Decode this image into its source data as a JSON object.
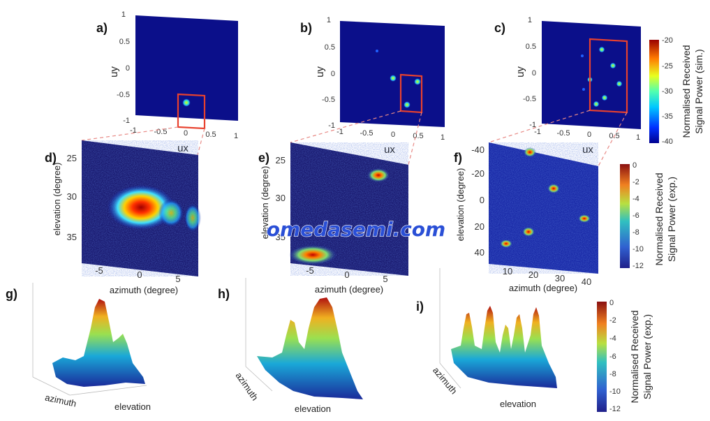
{
  "watermark": "omedasemi.com",
  "panels": {
    "a": {
      "label": "a)"
    },
    "b": {
      "label": "b)"
    },
    "c": {
      "label": "c)"
    },
    "d": {
      "label": "d)"
    },
    "e": {
      "label": "e)"
    },
    "f": {
      "label": "f)"
    },
    "g": {
      "label": "g)"
    },
    "h": {
      "label": "h)"
    },
    "i": {
      "label": "i)"
    }
  },
  "top_axes": {
    "xlabel": "ux",
    "ylabel": "uy",
    "xticks": [
      "-1",
      "-0.5",
      "0",
      "0.5",
      "1"
    ],
    "yticks": [
      "1",
      "0.5",
      "0",
      "-0.5",
      "-1"
    ]
  },
  "axes_d": {
    "xlabel": "azimuth (degree)",
    "ylabel": "elevation (degree)",
    "xticks": [
      "-5",
      "0",
      "5"
    ],
    "yticks": [
      "25",
      "30",
      "35"
    ]
  },
  "axes_e": {
    "xlabel": "azimuth (degree)",
    "ylabel": "elevation (degree)",
    "xticks": [
      "-5",
      "0",
      "5"
    ],
    "yticks": [
      "25",
      "30",
      "35"
    ]
  },
  "axes_f": {
    "xlabel": "azimuth (degree)",
    "ylabel": "elevation (degree)",
    "xticks": [
      "10",
      "20",
      "30",
      "40"
    ],
    "yticks": [
      "-40",
      "-20",
      "0",
      "20",
      "40"
    ]
  },
  "surface_labels": {
    "g": {
      "x": "azimuth",
      "y": "elevation"
    },
    "h": {
      "x": "azimuth",
      "y": "elevation"
    },
    "i": {
      "x": "azimuth",
      "y": "elevation"
    }
  },
  "colorbars": {
    "sim": {
      "label_1": "Normalised Received",
      "label_2": "Signal Power (sim.)",
      "ticks": [
        "-20",
        "-25",
        "-30",
        "-35",
        "-40"
      ]
    },
    "exp1": {
      "label_1": "Normalised Received",
      "label_2": "Signal Power (exp.)",
      "ticks": [
        "0",
        "-2",
        "-4",
        "-6",
        "-8",
        "-10",
        "-12"
      ]
    },
    "exp2": {
      "label_1": "Normalised Received",
      "label_2": "Signal Power (exp.)",
      "ticks": [
        "0",
        "-2",
        "-4",
        "-6",
        "-8",
        "-10",
        "-12"
      ]
    }
  },
  "colors": {
    "background_dark": "#0b0f8a",
    "highlight_box": "#e8412e",
    "connector": "#e88a86",
    "watermark": "#2a4fd6"
  }
}
